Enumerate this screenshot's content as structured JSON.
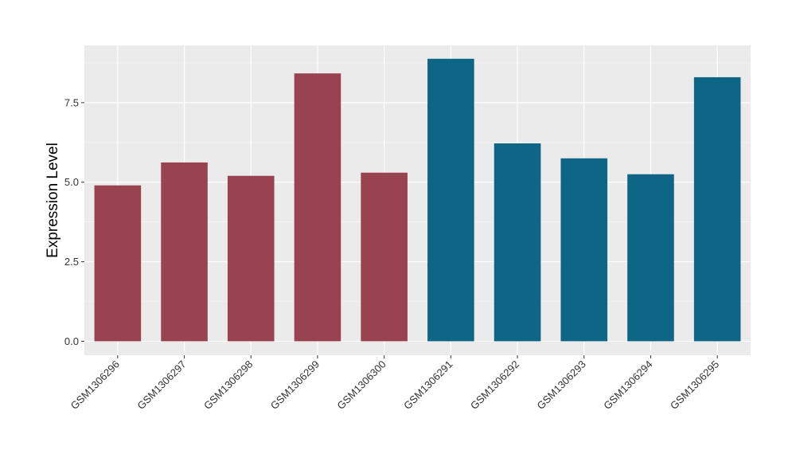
{
  "chart_data": {
    "type": "bar",
    "title": "",
    "xlabel": "",
    "ylabel": "Expression Level",
    "categories": [
      "GSM1306296",
      "GSM1306297",
      "GSM1306298",
      "GSM1306299",
      "GSM1306300",
      "GSM1306291",
      "GSM1306292",
      "GSM1306293",
      "GSM1306294",
      "GSM1306295"
    ],
    "values": [
      4.9,
      5.62,
      5.2,
      8.42,
      5.3,
      8.88,
      6.22,
      5.75,
      5.25,
      8.3
    ],
    "bar_colors": [
      "#9a4350",
      "#9a4350",
      "#9a4350",
      "#9a4350",
      "#9a4350",
      "#0d6685",
      "#0d6685",
      "#0d6685",
      "#0d6685",
      "#0d6685"
    ],
    "ylim": [
      -0.44,
      9.3
    ],
    "yticks": [
      0,
      2.5,
      5,
      7.5
    ],
    "ytick_labels": [
      "0.0",
      "2.5",
      "5.0",
      "7.5"
    ],
    "grid": true,
    "panel_background": "#ebebeb",
    "legend": "none"
  }
}
